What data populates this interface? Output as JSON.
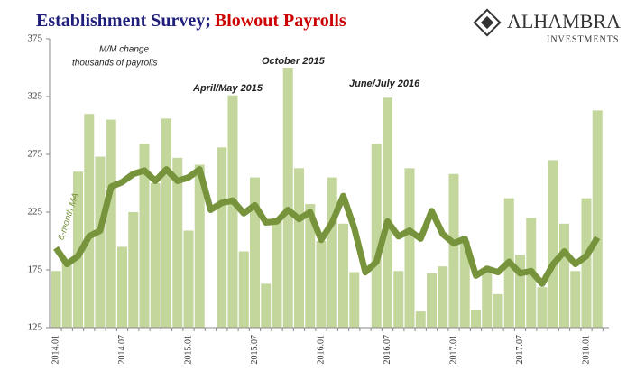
{
  "chart_data": {
    "type": "bar_line",
    "title_parts": [
      "Establishment Survey;",
      "Blowout Payrolls"
    ],
    "title_colors": [
      "#1f1f7a",
      "#cc0000"
    ],
    "logo": {
      "name": "ALHAMBRA",
      "tagline": "INVESTMENTS"
    },
    "annotations": [
      {
        "text": "M/M change",
        "style": "note"
      },
      {
        "text": "thousands of payrolls",
        "style": "note"
      },
      {
        "text": "October 2015",
        "style": "event"
      },
      {
        "text": "April/May 2015",
        "style": "event"
      },
      {
        "text": "June/July 2016",
        "style": "event"
      }
    ],
    "categories": [
      "2014.01",
      null,
      null,
      null,
      null,
      null,
      "2014.07",
      null,
      null,
      null,
      null,
      null,
      "2015.01",
      null,
      null,
      null,
      null,
      null,
      "2015.07",
      null,
      null,
      null,
      null,
      null,
      "2016.01",
      null,
      null,
      null,
      null,
      null,
      "2016.07",
      null,
      null,
      null,
      null,
      null,
      "2017.01",
      null,
      null,
      null,
      null,
      null,
      "2017.07",
      null,
      null,
      null,
      null,
      null,
      "2018.01",
      null
    ],
    "series": [
      {
        "name": null,
        "kind": "bar",
        "color": "#c3d69b",
        "values": [
          174,
          182,
          260,
          310,
          273,
          305,
          195,
          225,
          284,
          250,
          306,
          272,
          209,
          266,
          119,
          281,
          326,
          191,
          255,
          163,
          220,
          350,
          263,
          232,
          200,
          255,
          215,
          173,
          120,
          284,
          324,
          174,
          263,
          139,
          172,
          178,
          258,
          200,
          140,
          175,
          154,
          237,
          188,
          220,
          160,
          270,
          215,
          174,
          237,
          313
        ]
      },
      {
        "name": "6-month MA",
        "kind": "line",
        "color": "#77933c",
        "values": [
          194,
          180,
          187,
          204,
          209,
          247,
          251,
          258,
          261,
          252,
          262,
          252,
          255,
          262,
          227,
          233,
          235,
          224,
          231,
          216,
          217,
          227,
          219,
          225,
          201,
          216,
          239,
          211,
          173,
          182,
          217,
          204,
          209,
          202,
          226,
          206,
          198,
          202,
          170,
          176,
          173,
          182,
          172,
          174,
          163,
          180,
          191,
          180,
          187,
          203
        ]
      }
    ],
    "ylim": [
      125,
      375
    ],
    "yticks": [
      125,
      175,
      225,
      275,
      325,
      375
    ]
  }
}
